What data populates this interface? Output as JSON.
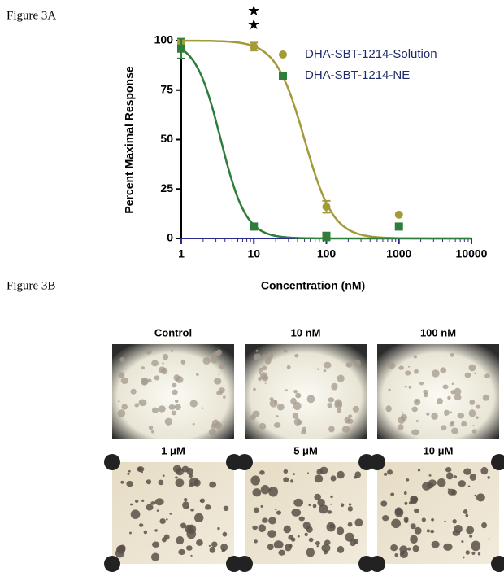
{
  "figure_a": {
    "label": "Figure 3A"
  },
  "chart_data": {
    "type": "dose-response",
    "xlabel": "Concentration (nM)",
    "ylabel": "Percent Maximal Response",
    "xscale": "log",
    "xlim": [
      1,
      10000
    ],
    "xticks": [
      1,
      10,
      100,
      1000,
      10000
    ],
    "ylim": [
      0,
      100
    ],
    "yticks": [
      0,
      25,
      50,
      75,
      100
    ],
    "annotations": [
      "★",
      "★"
    ],
    "annotation_x": 10,
    "series": [
      {
        "name": "DHA-SBT-1214-Solution",
        "color": "#a39a38",
        "marker": "circle",
        "x": [
          1,
          10,
          100,
          1000
        ],
        "values": [
          99,
          97,
          16,
          12
        ],
        "errors": [
          1,
          2,
          3,
          0
        ],
        "ic50": 50,
        "hill": 2.2
      },
      {
        "name": "DHA-SBT-1214-NE",
        "color": "#2e7d3a",
        "marker": "square",
        "x": [
          1,
          10,
          100,
          1000
        ],
        "values": [
          96,
          6,
          1,
          6
        ],
        "errors": [
          5,
          0,
          2,
          0
        ],
        "ic50": 3.5,
        "hill": 2.5
      }
    ]
  },
  "figure_b": {
    "label": "Figure 3B",
    "panels": [
      {
        "label": "Control"
      },
      {
        "label": "10 nM"
      },
      {
        "label": "100 nM"
      },
      {
        "label": "1 μM"
      },
      {
        "label": "5 μM"
      },
      {
        "label": "10 μM"
      }
    ]
  }
}
